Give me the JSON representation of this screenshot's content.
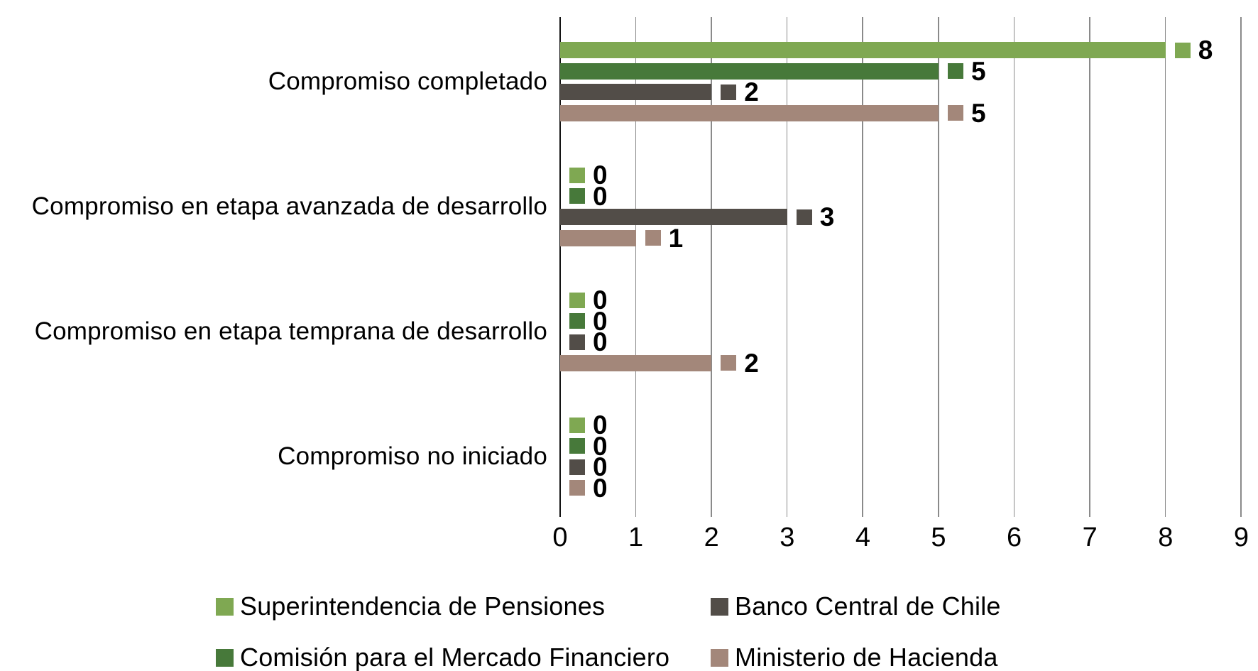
{
  "chart_data": {
    "type": "bar",
    "orientation": "horizontal",
    "title": "",
    "categories": [
      "Compromiso completado",
      "Compromiso en etapa avanzada de desarrollo",
      "Compromiso en etapa temprana de desarrollo",
      "Compromiso no iniciado"
    ],
    "series": [
      {
        "name": "Superintendencia de Pensiones",
        "color": "#7FA852",
        "values": [
          8,
          0,
          0,
          0
        ]
      },
      {
        "name": "Comisión para el Mercado Financiero",
        "color": "#47793A",
        "values": [
          5,
          0,
          0,
          0
        ]
      },
      {
        "name": "Banco Central de Chile",
        "color": "#524D48",
        "values": [
          2,
          3,
          0,
          0
        ]
      },
      {
        "name": "Ministerio de Hacienda",
        "color": "#A3877A",
        "values": [
          5,
          1,
          2,
          0
        ]
      }
    ],
    "xlim": [
      0,
      9
    ],
    "x_ticks": [
      0,
      1,
      2,
      3,
      4,
      5,
      6,
      7,
      8,
      9
    ],
    "grid": true,
    "data_labels": "value with series color key square",
    "legend_position": "bottom"
  },
  "legend": {
    "items": [
      {
        "label": "Superintendencia de Pensiones",
        "color": "#7FA852"
      },
      {
        "label": "Banco Central de Chile",
        "color": "#524D48"
      },
      {
        "label": "Comisión para el Mercado Financiero",
        "color": "#47793A"
      },
      {
        "label": "Ministerio de Hacienda",
        "color": "#A3877A"
      }
    ]
  },
  "colors": {
    "gridline": "#8A8A8A",
    "axis_line": "#111111",
    "text": "#000000"
  }
}
